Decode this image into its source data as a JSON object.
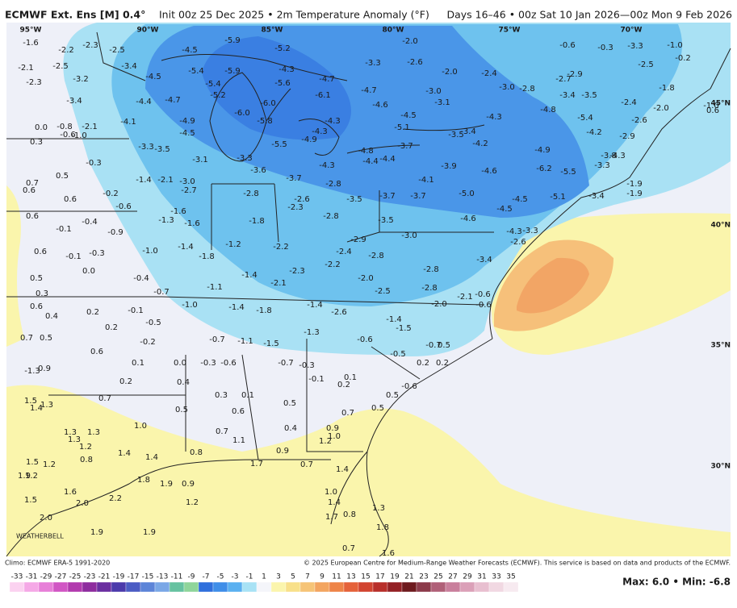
{
  "header": {
    "model": "ECMWF Ext. Ens [M] 0.4°",
    "init": "Init 00z 25 Dec 2025 • 2m Temperature Anomaly (°F)",
    "period": "Days 16–46 • 00z Sat 10 Jan 2026—00z Mon 9 Feb 2026"
  },
  "lon_labels": [
    "95°W",
    "90°W",
    "85°W",
    "80°W",
    "75°W",
    "70°W"
  ],
  "lat_labels": [
    "45°N",
    "40°N",
    "35°N",
    "30°N"
  ],
  "points": [
    "-1.6",
    "-2.2",
    "-2.3",
    "-2.5",
    "-4.5",
    "-5.9",
    "-5.2",
    "-3.3",
    "-2.0",
    "-2.6",
    "-2.0",
    "-2.4",
    "-0.6",
    "-0.3",
    "-3.3",
    "-1.0",
    "-0.2",
    "-2.1",
    "-2.5",
    "-3.4",
    "-5.4",
    "-5.4",
    "-5.9",
    "-4.3",
    "-5.6",
    "-4.7",
    "-2.7",
    "-2.9",
    "-2.5",
    "-2.3",
    "-3.2",
    "-4.5",
    "-5.2",
    "-6.1",
    "-4.7",
    "-3.0",
    "-3.0",
    "-2.8",
    "-3.4",
    "-3.5",
    "-1.8",
    "-3.4",
    "-4.4",
    "-4.7",
    "-6.0",
    "-4.6",
    "-3.1",
    "-2.4",
    "-2.0",
    "-1.0",
    "-6.0",
    "-5.8",
    "-4.9",
    "-4.1",
    "-2.1",
    "0.0",
    "-0.8",
    "-4.5",
    "-4.3",
    "-4.8",
    "-5.4",
    "-2.6",
    "0.6",
    "-4.5",
    "-0.6",
    "-1.0",
    "-4.3",
    "-4.3",
    "-5.1",
    "-4.9",
    "-5.5",
    "-3.5",
    "-3.4",
    "-4.2",
    "-4.2",
    "-2.9",
    "0.3",
    "-3.3",
    "-3.5",
    "-4.8",
    "-3.7",
    "-4.9",
    "-3.8",
    "-4.3",
    "-3.3",
    "-0.3",
    "-3.1",
    "-3.3",
    "-4.3",
    "-4.4",
    "-4.4",
    "-3.9",
    "-4.6",
    "-6.2",
    "-5.5",
    "0.7",
    "0.5",
    "-1.4",
    "-2.1",
    "-3.0",
    "-3.6",
    "-3.7",
    "-2.8",
    "-4.1",
    "-1.9",
    "0.6",
    "-2.7",
    "-2.8",
    "-2.6",
    "-3.5",
    "-3.7",
    "-3.7",
    "-5.0",
    "-4.5",
    "-5.1",
    "-3.4",
    "-1.9",
    "0.6",
    "-0.2",
    "-0.6",
    "-1.6",
    "-2.3",
    "-4.5",
    "0.6",
    "-0.4",
    "-1.3",
    "-1.6",
    "-1.8",
    "-2.8",
    "-3.5",
    "-4.6",
    "-0.1",
    "-0.9",
    "-3.0",
    "-4.3",
    "-3.3",
    "-1.4",
    "-1.2",
    "-2.2",
    "-2.9",
    "-2.4",
    "-2.6",
    "0.6",
    "-0.1",
    "-0.3",
    "-1.0",
    "-1.8",
    "-2.8",
    "-2.2",
    "-3.4",
    "0.0",
    "-1.4",
    "-2.3",
    "-2.8",
    "0.5",
    "-0.4",
    "-2.1",
    "-2.0",
    "-2.8",
    "0.3",
    "-0.7",
    "-1.1",
    "-2.5",
    "-2.1",
    "-0.6",
    "0.6",
    "-1.0",
    "-1.4",
    "-1.8",
    "-1.4",
    "-2.6",
    "-2.0",
    "-0.6",
    "0.4",
    "0.2",
    "-0.1",
    "-0.5",
    "-1.4",
    "-1.5",
    "0.2",
    "-1.3",
    "0.7",
    "0.5",
    "-0.2",
    "-0.7",
    "-1.1",
    "-1.5",
    "-0.6",
    "-0.7",
    "0.5",
    "0.6",
    "-0.5",
    "0.0",
    "-0.3",
    "-0.6",
    "-0.7",
    "-0.3",
    "0.2",
    "0.2",
    "-1.3",
    "0.9",
    "0.1",
    "-0.1",
    "0.1",
    "0.2",
    "0.4",
    "0.2",
    "-0.6",
    "0.3",
    "0.1",
    "0.7",
    "0.5",
    "1.5",
    "1.4",
    "1.3",
    "0.5",
    "0.6",
    "0.5",
    "0.7",
    "0.5",
    "1.0",
    "0.4",
    "0.9",
    "1.3",
    "1.3",
    "0.7",
    "1.0",
    "1.2",
    "1.3",
    "1.1",
    "1.2",
    "1.4",
    "1.4",
    "0.8",
    "0.9",
    "1.5",
    "1.2",
    "0.8",
    "1.7",
    "0.7",
    "1.4",
    "1.9",
    "1.2",
    "1.8",
    "1.9",
    "0.9",
    "1.0",
    "1.6",
    "2.2",
    "2.0",
    "1.5",
    "1.2",
    "1.4",
    "0.8",
    "1.3",
    "1.7",
    "2.0",
    "1.8",
    "1.9",
    "1.9",
    "0.7",
    "1.6"
  ],
  "colorbar": {
    "ticks": [
      -33,
      -31,
      -29,
      -27,
      -25,
      -23,
      -21,
      -19,
      -17,
      -15,
      -13,
      -11,
      -9,
      -7,
      -5,
      -3,
      -1,
      1,
      3,
      5,
      7,
      9,
      11,
      13,
      15,
      17,
      19,
      21,
      23,
      25,
      27,
      29,
      31,
      33,
      35
    ],
    "colors": [
      "#fbd2f0",
      "#f5a8e6",
      "#e77fd8",
      "#d156c4",
      "#b23aae",
      "#8e2c9e",
      "#6a2ea0",
      "#4b3aab",
      "#4b5cc4",
      "#5c84d8",
      "#7aa7e6",
      "#66c2a0",
      "#8fd59a",
      "#2f6fdc",
      "#3f8ee8",
      "#5ab0f0",
      "#a8e2f5",
      "#f4f5fa",
      "#fbf5ad",
      "#f8e08a",
      "#f6c477",
      "#f3a560",
      "#ee8448",
      "#e5623a",
      "#d24430",
      "#b82f2a",
      "#932024",
      "#6e1a1e",
      "#8c3a4a",
      "#b06078",
      "#c97f9c",
      "#dba0b8",
      "#e8bfd0",
      "#f1d8e2",
      "#f7eaf0"
    ]
  },
  "footer": {
    "climo": "Climo: ECMWF ERA-5 1991-2020",
    "copyright": "© 2025 European Centre for Medium-Range Weather Forecasts (ECMWF). This service is based on data and products of the ECMWF.",
    "maxmin": "Max: 6.0 • Min: -6.8",
    "logo": "WEATHERBELL"
  }
}
